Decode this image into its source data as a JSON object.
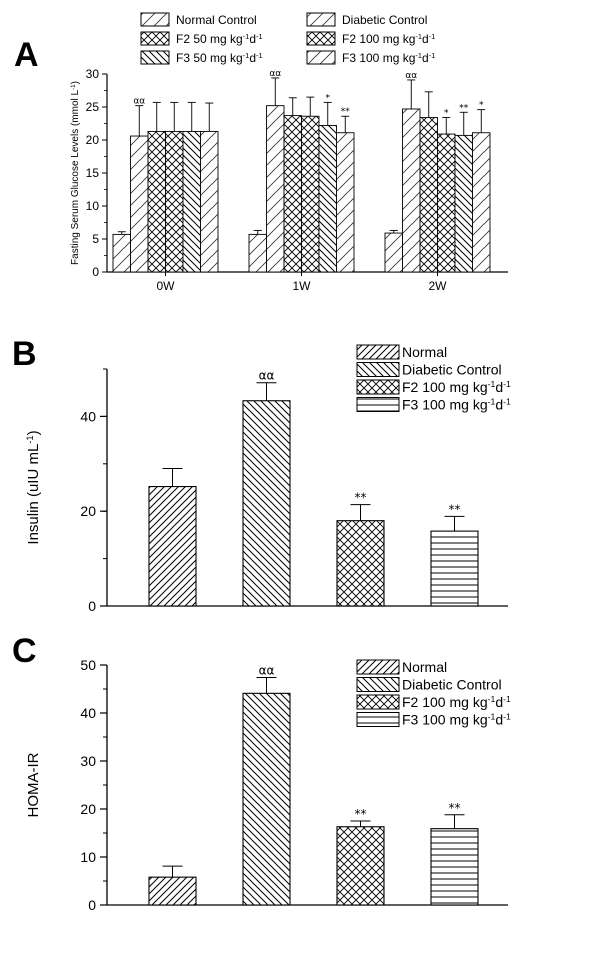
{
  "chart_data": [
    {
      "panel": "A",
      "type": "bar",
      "ylabel": "Fasting Serum Glucose Levels (mmol L",
      "ylabel_sup": "-1",
      "ylabel_end": ")",
      "ylim": [
        0,
        30
      ],
      "yticks": [
        "0",
        "5",
        "10",
        "15",
        "20",
        "25",
        "30"
      ],
      "categories": [
        "0W",
        "1W",
        "2W"
      ],
      "legend": [
        {
          "text": "Normal Control",
          "parts": [
            "Normal Control"
          ],
          "pattern": "diag-sparse"
        },
        {
          "text": "Diabetic Control",
          "parts": [
            "Diabetic Control"
          ],
          "pattern": "diag-sparse"
        },
        {
          "text": "F2 50 mg kg-1d-1",
          "parts": [
            "F2 50 mg kg",
            "-1",
            "d",
            "-1"
          ],
          "pattern": "cross"
        },
        {
          "text": "F2 100 mg kg-1d-1",
          "parts": [
            "F2 100 mg kg",
            "-1",
            "d",
            "-1"
          ],
          "pattern": "cross"
        },
        {
          "text": "F3 50 mg kg-1d-1",
          "parts": [
            "F3 50 mg kg",
            "-1",
            "d",
            "-1"
          ],
          "pattern": "back-diag"
        },
        {
          "text": "F3 100 mg kg-1d-1",
          "parts": [
            "F3 100 mg kg",
            "-1",
            "d",
            "-1"
          ],
          "pattern": "diag-sparse"
        }
      ],
      "series": [
        {
          "name": "Normal Control",
          "values": [
            5.7,
            5.7,
            5.9
          ],
          "errors": [
            0.4,
            0.6,
            0.4
          ],
          "pattern": "diag-sparse",
          "sig": [
            "",
            "",
            ""
          ]
        },
        {
          "name": "Diabetic Control",
          "values": [
            20.6,
            25.2,
            24.7
          ],
          "errors": [
            4.6,
            4.2,
            4.4
          ],
          "pattern": "diag-sparse",
          "sig": [
            "αα",
            "αα",
            "αα"
          ]
        },
        {
          "name": "F2 50 mg kg-1d-1",
          "values": [
            21.3,
            23.7,
            23.4
          ],
          "errors": [
            4.4,
            2.7,
            3.9
          ],
          "pattern": "cross",
          "sig": [
            "",
            "",
            ""
          ]
        },
        {
          "name": "F2 100 mg kg-1d-1",
          "values": [
            21.3,
            23.6,
            20.9
          ],
          "errors": [
            4.4,
            2.9,
            2.5
          ],
          "pattern": "cross",
          "sig": [
            "",
            "",
            "*"
          ]
        },
        {
          "name": "F3 50 mg kg-1d-1",
          "values": [
            21.3,
            22.2,
            20.7
          ],
          "errors": [
            4.4,
            3.5,
            3.5
          ],
          "pattern": "back-diag",
          "sig": [
            "",
            "*",
            "**"
          ]
        },
        {
          "name": "F3 100 mg kg-1d-1",
          "values": [
            21.3,
            21.1,
            21.1
          ],
          "errors": [
            4.3,
            2.5,
            3.5
          ],
          "pattern": "diag-sparse",
          "sig": [
            "",
            "**",
            "*"
          ]
        }
      ]
    },
    {
      "panel": "B",
      "type": "bar",
      "ylabel": "Insulin (uIU mL",
      "ylabel_sup": "-1",
      "ylabel_end": ")",
      "ylim": [
        0,
        50
      ],
      "yticks": [
        "0",
        "20",
        "40"
      ],
      "categories": [
        "Normal",
        "Diabetic Control",
        "F2 100 mg kg-1d-1",
        "F3 100 mg kg-1d-1"
      ],
      "legend": [
        {
          "text": "Normal",
          "parts": [
            "Normal"
          ],
          "pattern": "diag"
        },
        {
          "text": "Diabetic Control",
          "parts": [
            "Diabetic Control"
          ],
          "pattern": "back-diag"
        },
        {
          "text": "F2 100 mg kg-1d-1",
          "parts": [
            "F2 100 mg kg",
            "-1",
            "d",
            "-1"
          ],
          "pattern": "cross"
        },
        {
          "text": "F3 100 mg kg-1d-1",
          "parts": [
            "F3 100 mg kg",
            "-1",
            "d",
            "-1"
          ],
          "pattern": "horiz"
        }
      ],
      "values": [
        25.2,
        43.3,
        18.0,
        15.8
      ],
      "errors": [
        3.8,
        3.8,
        3.4,
        3.1
      ],
      "patterns": [
        "diag",
        "back-diag",
        "cross",
        "horiz"
      ],
      "sig": [
        "",
        "αα",
        "**",
        "**"
      ]
    },
    {
      "panel": "C",
      "type": "bar",
      "ylabel": "HOMA-IR",
      "ylabel_sup": "",
      "ylabel_end": "",
      "ylim": [
        0,
        50
      ],
      "yticks": [
        "0",
        "10",
        "20",
        "30",
        "40",
        "50"
      ],
      "categories": [
        "Normal",
        "Diabetic Control",
        "F2 100 mg kg-1d-1",
        "F3 100 mg kg-1d-1"
      ],
      "legend": [
        {
          "text": "Normal",
          "parts": [
            "Normal"
          ],
          "pattern": "diag"
        },
        {
          "text": "Diabetic Control",
          "parts": [
            "Diabetic Control"
          ],
          "pattern": "back-diag"
        },
        {
          "text": "F2 100 mg kg-1d-1",
          "parts": [
            "F2 100 mg kg",
            "-1",
            "d",
            "-1"
          ],
          "pattern": "cross"
        },
        {
          "text": "F3 100 mg kg-1d-1",
          "parts": [
            "F3 100 mg kg",
            "-1",
            "d",
            "-1"
          ],
          "pattern": "horiz"
        }
      ],
      "values": [
        5.8,
        44.1,
        16.3,
        15.9
      ],
      "errors": [
        2.3,
        3.3,
        1.2,
        2.9
      ],
      "patterns": [
        "diag",
        "back-diag",
        "cross",
        "horiz"
      ],
      "sig": [
        "",
        "αα",
        "**",
        "**"
      ]
    }
  ]
}
